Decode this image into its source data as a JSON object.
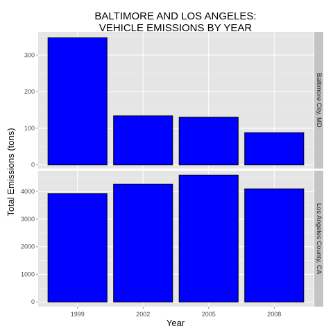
{
  "chart_data": {
    "type": "bar",
    "title_lines": [
      "BALTIMORE AND LOS ANGELES:",
      "VEHICLE EMISSIONS BY YEAR"
    ],
    "xlabel": "Year",
    "ylabel": "Total Emissions (tons)",
    "categories": [
      "1999",
      "2002",
      "2005",
      "2008"
    ],
    "bar_color": "#0000ff",
    "bar_outline": "#000000",
    "panel_background": "#e5e5e5",
    "strip_background": "#c4c4c4",
    "grid": true,
    "panels": [
      {
        "label": "Baltimore City, MD",
        "values": [
          347,
          134,
          130,
          88
        ],
        "ylim": [
          -10,
          363
        ],
        "yticks": [
          0,
          100,
          200,
          300
        ],
        "ytick_labels": [
          "0",
          "100",
          "200",
          "300"
        ]
      },
      {
        "label": "Los Angeles County, CA",
        "values": [
          3931,
          4274,
          4601,
          4101
        ],
        "ylim": [
          -170,
          4760
        ],
        "yticks": [
          0,
          1000,
          2000,
          3000,
          4000
        ],
        "ytick_labels": [
          "0",
          "1000",
          "2000",
          "3000",
          "4000"
        ]
      }
    ]
  }
}
